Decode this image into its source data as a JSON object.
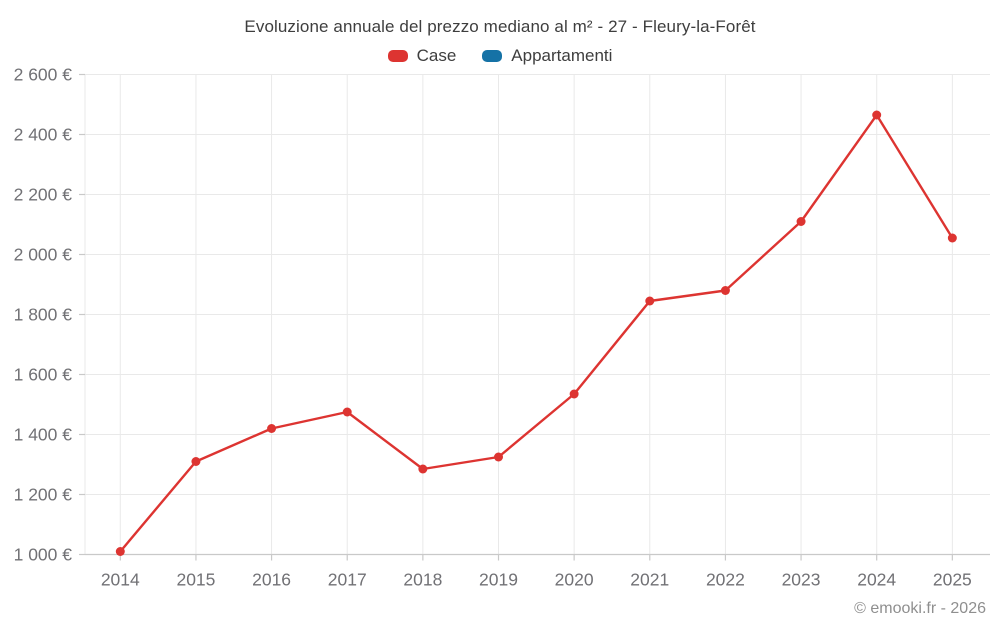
{
  "footer": {
    "text": "© emooki.fr - 2026"
  },
  "chart_data": {
    "type": "line",
    "title": "Evoluzione annuale del prezzo mediano al m² - 27 - Fleury-la-Forêt",
    "categories": [
      "2014",
      "2015",
      "2016",
      "2017",
      "2018",
      "2019",
      "2020",
      "2021",
      "2022",
      "2023",
      "2024",
      "2025"
    ],
    "series": [
      {
        "name": "Case",
        "color": "#dd3431",
        "values": [
          1010,
          1310,
          1420,
          1475,
          1285,
          1325,
          1535,
          1845,
          1880,
          2110,
          2465,
          2055
        ]
      },
      {
        "name": "Appartamenti",
        "color": "#1572a6",
        "values": []
      }
    ],
    "xlabel": "",
    "ylabel": "",
    "ylim": [
      1000,
      2600
    ],
    "y_ticks": [
      1000,
      1200,
      1400,
      1600,
      1800,
      2000,
      2200,
      2400,
      2600
    ],
    "y_tick_labels": [
      "1 000 €",
      "1 200 €",
      "1 400 €",
      "1 600 €",
      "1 800 €",
      "2 000 €",
      "2 200 €",
      "2 400 €",
      "2 600 €"
    ],
    "currency_suffix": "€",
    "grid": true,
    "legend_position": "top",
    "marker": "circle",
    "colors": {
      "grid_line": "#e9e9e9",
      "axis_line": "#c9c9c9",
      "tick_label": "#717175",
      "title_text": "#3e3e3e",
      "footer_text": "#8f8f8f",
      "background": "#ffffff"
    }
  }
}
